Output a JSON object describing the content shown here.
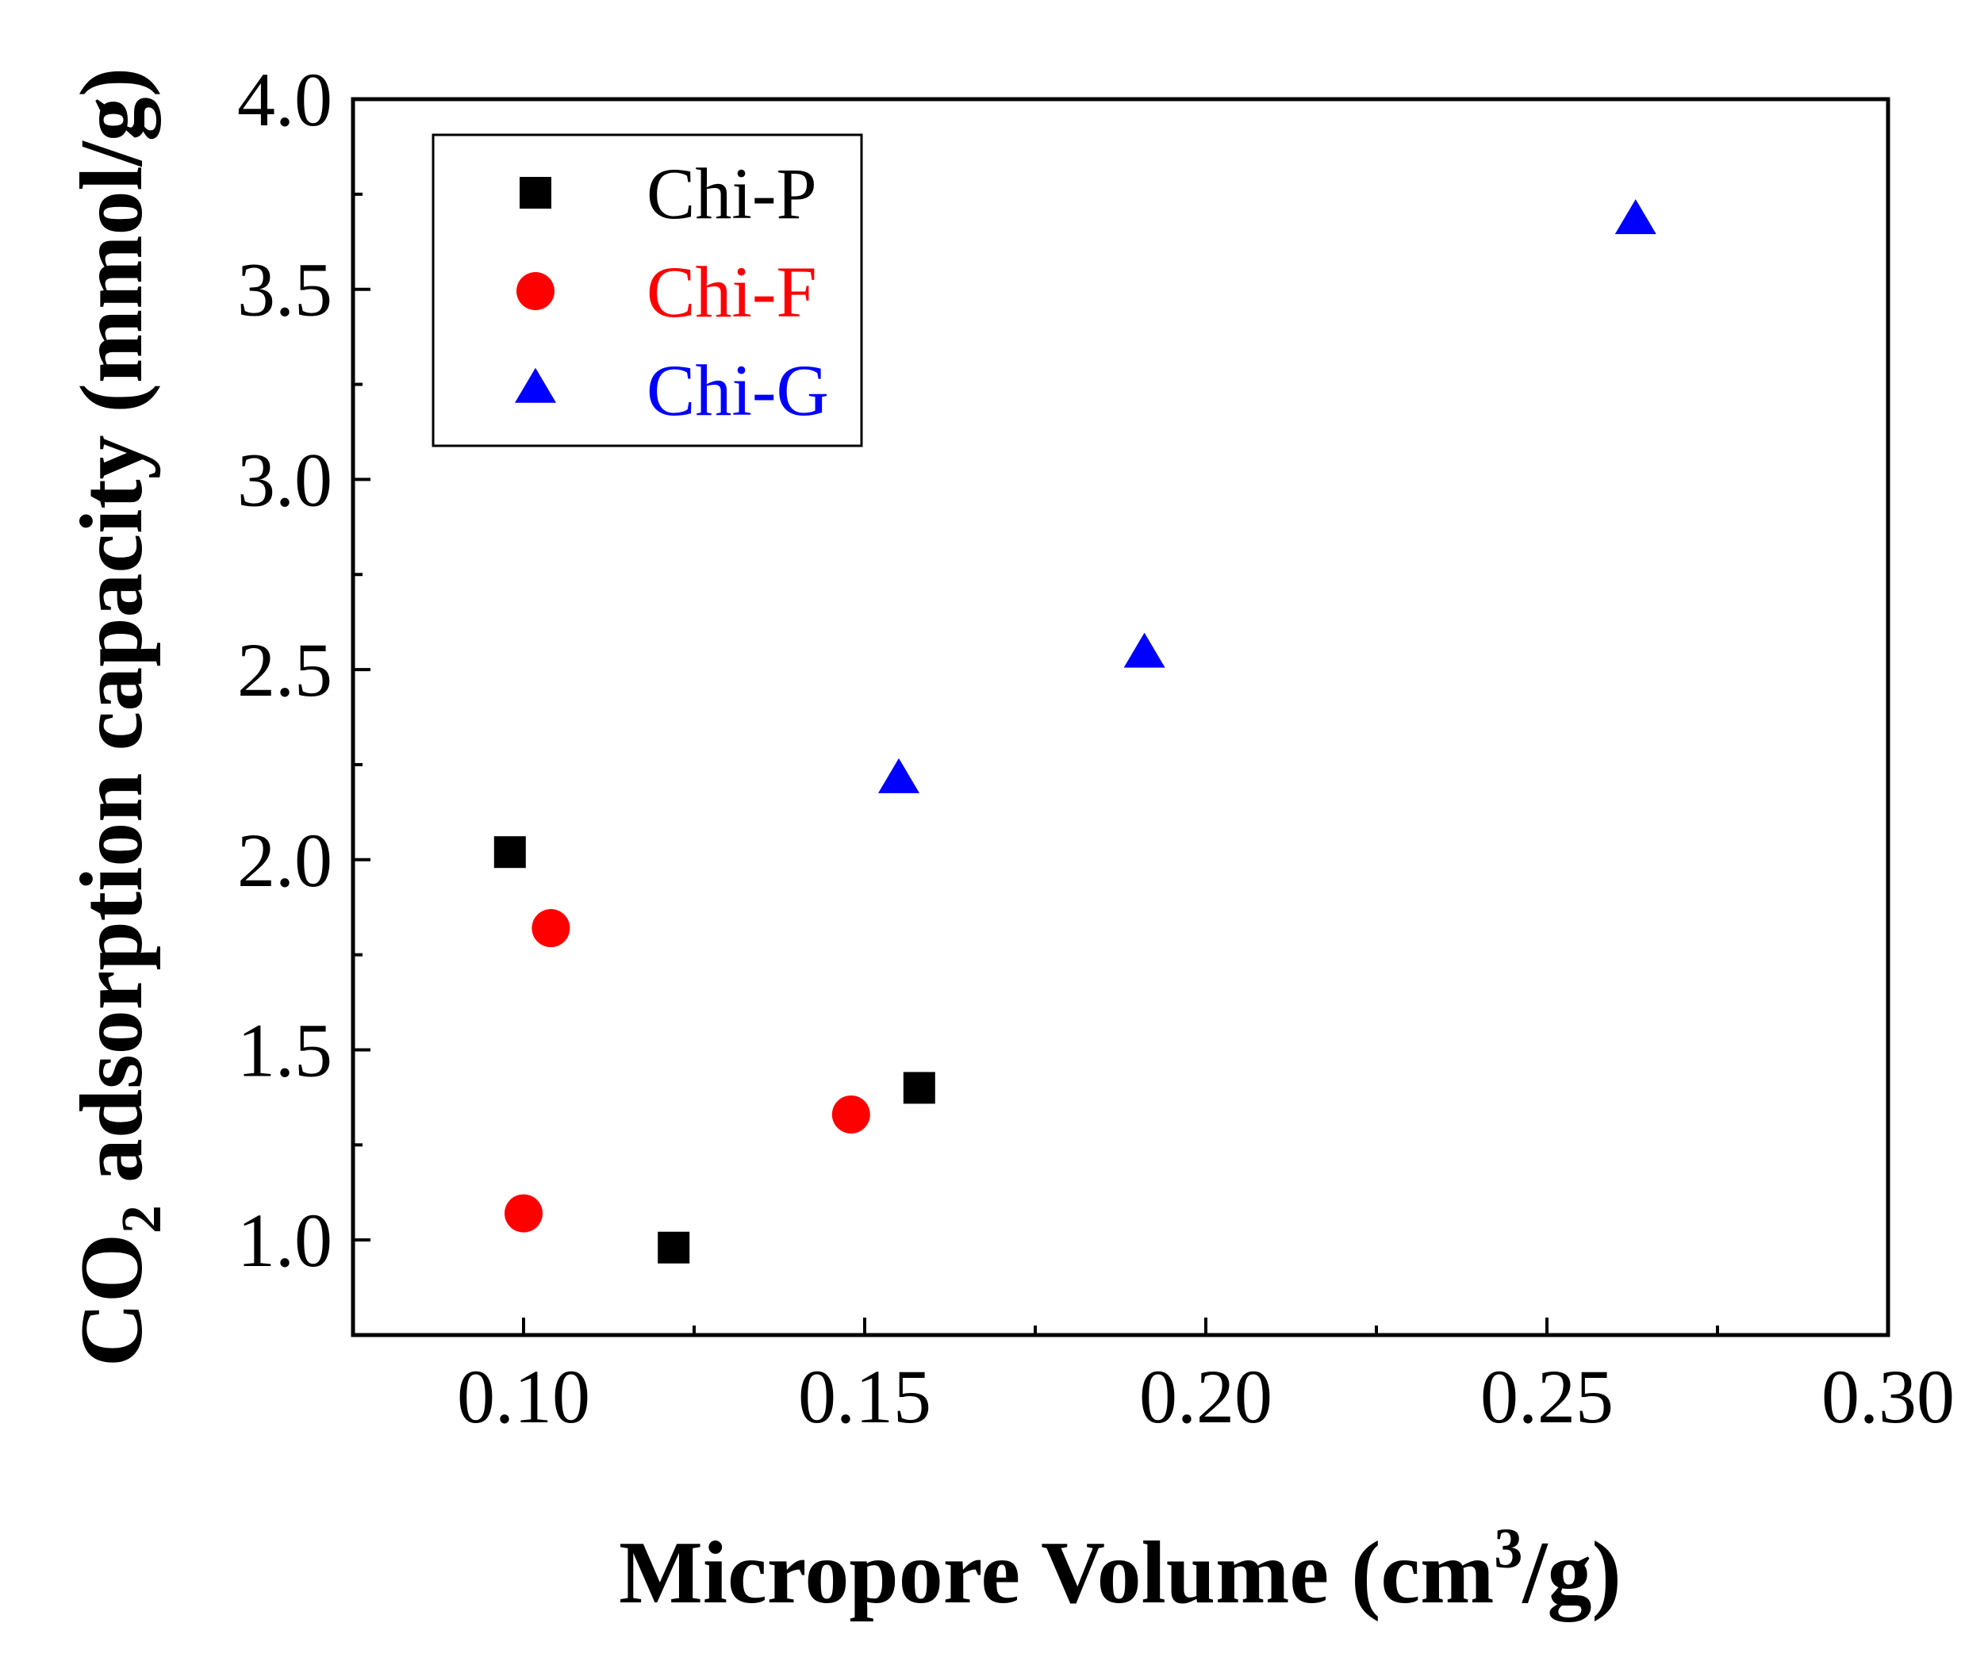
{
  "chart_data": {
    "type": "scatter",
    "xlabel": {
      "prefix": "Micropore Volume (cm",
      "sup": "3",
      "suffix": "/g)"
    },
    "ylabel": {
      "prefix": "CO",
      "sub": "2",
      "suffix": " adsorption capacity (mmol/g)"
    },
    "xlim": [
      0.075,
      0.3
    ],
    "ylim": [
      0.75,
      4.0
    ],
    "xticks": [
      "0.10",
      "0.15",
      "0.20",
      "0.25",
      "0.30"
    ],
    "yticks": [
      "1.0",
      "1.5",
      "2.0",
      "2.5",
      "3.0",
      "3.5",
      "4.0"
    ],
    "grid": false,
    "legend_position": "top-left",
    "series": [
      {
        "name": "Chi-P",
        "marker": "square",
        "color": "#000000",
        "x": [
          0.098,
          0.122,
          0.158
        ],
        "y": [
          2.02,
          0.98,
          1.4
        ]
      },
      {
        "name": "Chi-F",
        "marker": "circle",
        "color": "#ff0000",
        "x": [
          0.1,
          0.104,
          0.148
        ],
        "y": [
          1.07,
          1.82,
          1.33
        ]
      },
      {
        "name": "Chi-G",
        "marker": "triangle",
        "color": "#0000ff",
        "x": [
          0.155,
          0.191,
          0.263
        ],
        "y": [
          2.21,
          2.54,
          3.68
        ]
      }
    ]
  }
}
